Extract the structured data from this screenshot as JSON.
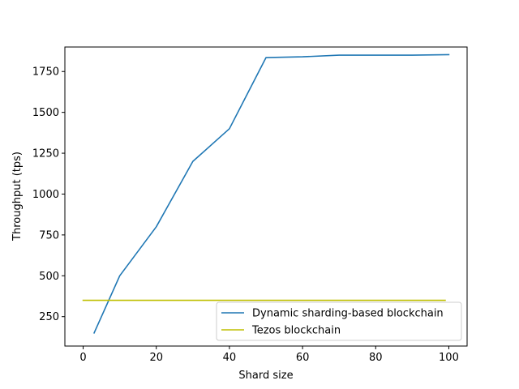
{
  "chart_data": {
    "type": "line",
    "title": "",
    "xlabel": "Shard size",
    "ylabel": "Throughput (tps)",
    "xlim": [
      -5,
      105
    ],
    "ylim": [
      70,
      1900
    ],
    "xticks": [
      0,
      20,
      40,
      60,
      80,
      100
    ],
    "yticks": [
      250,
      500,
      750,
      1000,
      1250,
      1500,
      1750
    ],
    "grid": false,
    "legend_placement": "lower right",
    "series": [
      {
        "name": "Dynamic sharding-based blockchain",
        "color": "#1f77b4",
        "x": [
          3,
          10,
          20,
          30,
          40,
          50,
          60,
          70,
          80,
          90,
          100
        ],
        "y": [
          150,
          500,
          800,
          1200,
          1400,
          1835,
          1840,
          1850,
          1850,
          1850,
          1853
        ]
      },
      {
        "name": "Tezos blockchain",
        "color": "#bfbf00",
        "x": [
          0,
          99
        ],
        "y": [
          350,
          350
        ]
      }
    ]
  }
}
